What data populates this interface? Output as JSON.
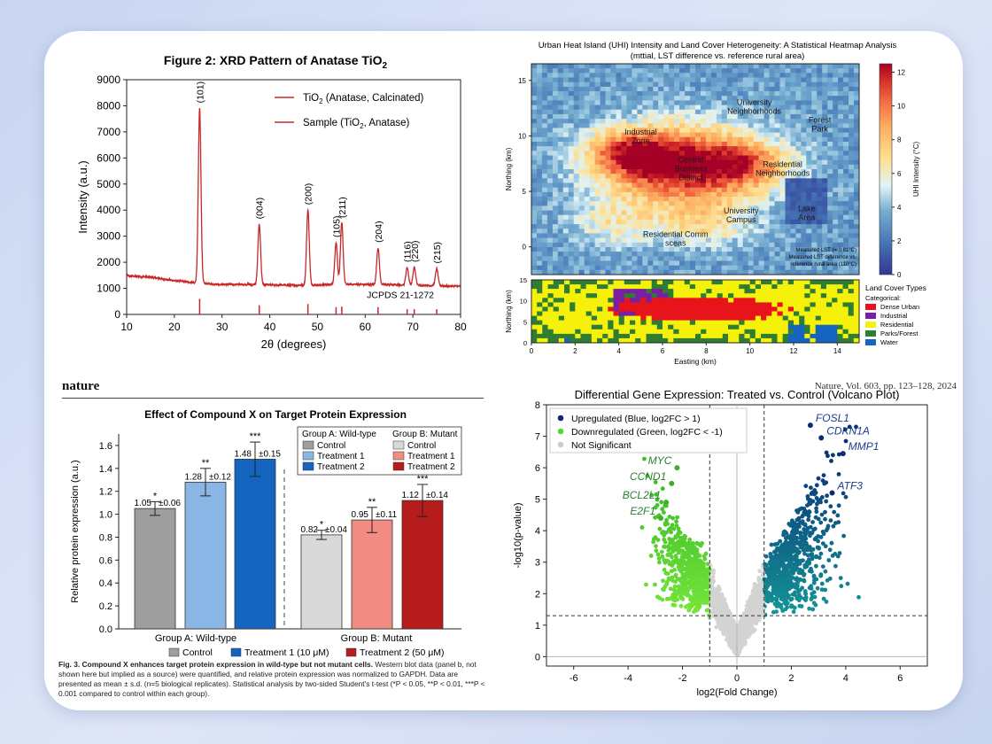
{
  "xrd": {
    "title": "Figure 2: XRD Pattern of Anatase TiO",
    "title_sub": "2",
    "legend1": "TiO",
    "legend1_sub": "2",
    "legend1_rest": " (Anatase, Calcinated)",
    "legend2": "Sample (TiO",
    "legend2_sub": "2",
    "legend2_rest": ", Anatase)",
    "reference": "JCPDS 21-1272",
    "xlabel": "2θ (degrees)",
    "ylabel": "Intensity (a.u.)",
    "line_color": "#c62828"
  },
  "uhi": {
    "title_line1": "Urban Heat Island (UHI) Intensity and Land Cover Heterogeneity: A Statistical Heatmap Analysis",
    "title_line2": "(mttial, LST difference vs. reference rural area)",
    "ylabel": "Northing (km)",
    "xlabel": "Easting (km)",
    "colorbar_label": "UHI Intensity (°C)",
    "areas": [
      "University Neighborhoods",
      "Forest Park",
      "Industrial Zone",
      "Central Business District",
      "Residential Neighborhoods",
      "Lake Area",
      "University Campus",
      "Residential Comm sceas"
    ],
    "note_line1": "Measured LST (= 0.81°C)",
    "note_line2": "Measured LST difference vs.",
    "note_line3": "reference rural area (110°C)",
    "landcover_title": "Land Cover Types",
    "landcover_subtitle": "Categorical:",
    "landcover_items": [
      {
        "label": "Dense Urban",
        "color": "#e8141b"
      },
      {
        "label": "Industrial",
        "color": "#7b1fa2"
      },
      {
        "label": "Residential",
        "color": "#f5f10a"
      },
      {
        "label": "Parks/Forest",
        "color": "#2e7d32"
      },
      {
        "label": "Water",
        "color": "#1565c0"
      }
    ]
  },
  "nature": {
    "journal": "nature",
    "citation": "Nature, Vol. 603, pp. 123–128, 2024",
    "caption_bold": "Fig. 3. Compound X enhances target protein expression in wild-type but not mutant cells.",
    "caption_text": " Western blot data (panel b, not shown here but implied as a source) were quantified, and relative protein expression was normalized to GAPDH. Data are presented as mean ± s.d. (n=5 biological replicates). Statistical analysis by two-sided Student's t-test (*P < 0.05, **P < 0.01, ***P < 0.001 compared to control within each group)."
  },
  "chart_data": [
    {
      "type": "line",
      "title": "Figure 2: XRD Pattern of Anatase TiO2",
      "xlabel": "2θ (degrees)",
      "ylabel": "Intensity (a.u.)",
      "xlim": [
        10,
        80
      ],
      "ylim": [
        0,
        9000
      ],
      "xticks": [
        10,
        20,
        30,
        40,
        50,
        60,
        70,
        80
      ],
      "yticks": [
        0,
        1000,
        2000,
        3000,
        4000,
        5000,
        6000,
        7000,
        8000,
        9000
      ],
      "peaks": [
        {
          "x": 25.3,
          "y": 7900,
          "label": "(101)"
        },
        {
          "x": 37.8,
          "y": 3450,
          "label": "(004)"
        },
        {
          "x": 48.0,
          "y": 4000,
          "label": "(200)"
        },
        {
          "x": 53.9,
          "y": 2750,
          "label": "(105)"
        },
        {
          "x": 55.1,
          "y": 3500,
          "label": "(211)"
        },
        {
          "x": 62.7,
          "y": 2550,
          "label": "(204)"
        },
        {
          "x": 68.8,
          "y": 1800,
          "label": "(116)"
        },
        {
          "x": 70.3,
          "y": 1800,
          "label": "(220)"
        },
        {
          "x": 75.0,
          "y": 1750,
          "label": "(215)"
        }
      ],
      "baseline": [
        [
          10,
          1480
        ],
        [
          15,
          1430
        ],
        [
          20,
          1300
        ],
        [
          25,
          1200
        ],
        [
          30,
          1150
        ],
        [
          35,
          1150
        ],
        [
          40,
          1130
        ],
        [
          45,
          1120
        ],
        [
          50,
          1130
        ],
        [
          55,
          1150
        ],
        [
          60,
          1150
        ],
        [
          65,
          1140
        ],
        [
          70,
          1120
        ],
        [
          75,
          1100
        ],
        [
          80,
          1080
        ]
      ],
      "reference_lines": [
        25.3,
        37.8,
        48.0,
        53.9,
        55.1,
        62.7,
        68.8,
        70.3,
        75.0
      ],
      "reference_heights": [
        600,
        350,
        400,
        280,
        300,
        280,
        200,
        200,
        200
      ]
    },
    {
      "type": "heatmap",
      "title": "Urban Heat Island (UHI) Intensity and Land Cover Heterogeneity",
      "xlabel": "Easting (km)",
      "ylabel": "Northing (km)",
      "xlim": [
        0,
        15
      ],
      "ylim": [
        -2.5,
        16.5
      ],
      "xticks": [
        0,
        2,
        4,
        6,
        8,
        10,
        12,
        14
      ],
      "yticks": [
        0,
        5,
        10,
        15
      ],
      "colorbar": {
        "label": "UHI Intensity (°C)",
        "range": [
          0,
          12.5
        ],
        "ticks": [
          0,
          2,
          4,
          6,
          8,
          10,
          12
        ]
      },
      "hotspots": [
        {
          "x": 7.0,
          "y": 7.2,
          "intensity": 12.0
        },
        {
          "x": 4.5,
          "y": 8.5,
          "intensity": 10.0
        },
        {
          "x": 9.8,
          "y": 7.5,
          "intensity": 7.0
        },
        {
          "x": 8.0,
          "y": 2.0,
          "intensity": 5.5
        },
        {
          "x": 3.8,
          "y": 2.0,
          "intensity": 5.0
        }
      ],
      "landcover_ylim": [
        0,
        15
      ],
      "landcover_yticks": [
        0,
        5,
        10,
        15
      ]
    },
    {
      "type": "bar",
      "title": "Effect of Compound X on Target Protein Expression",
      "ylabel": "Relative protein expression (a.u.)",
      "ylim": [
        0,
        1.7
      ],
      "yticks": [
        0.0,
        0.2,
        0.4,
        0.6,
        0.8,
        1.0,
        1.2,
        1.4,
        1.6
      ],
      "groups": [
        "Group A: Wild-type",
        "Group B: Mutant"
      ],
      "legend_header": [
        "Group A: Wild-type",
        "Group B: Mutant"
      ],
      "legend": {
        "groupA": [
          "Control",
          "Treatment 1",
          "Treatment 2"
        ],
        "groupB": [
          "Control",
          "Treatment 1",
          "Treatment 2"
        ]
      },
      "bottom_legend": [
        "Control",
        "Treatment 1 (10 μM)",
        "Treatment 2 (50 μM)"
      ],
      "bars": [
        {
          "group": "A",
          "name": "Control",
          "value": 1.05,
          "err": 0.06,
          "label": "1.05",
          "err_label": "±0.06",
          "sig": "*",
          "color": "#9e9e9e"
        },
        {
          "group": "A",
          "name": "Treatment 1",
          "value": 1.28,
          "err": 0.12,
          "label": "1.28",
          "err_label": "±0.12",
          "sig": "**",
          "color": "#8ab6e6"
        },
        {
          "group": "A",
          "name": "Treatment 2",
          "value": 1.48,
          "err": 0.15,
          "label": "1.48",
          "err_label": "±0.15",
          "sig": "***",
          "color": "#1565c0"
        },
        {
          "group": "B",
          "name": "Control",
          "value": 0.82,
          "err": 0.04,
          "label": "0.82",
          "err_label": "±0.04",
          "sig": "*",
          "color": "#d9d9d9"
        },
        {
          "group": "B",
          "name": "Treatment 1",
          "value": 0.95,
          "err": 0.11,
          "label": "0.95",
          "err_label": "±0.11",
          "sig": "**",
          "color": "#f28b82"
        },
        {
          "group": "B",
          "name": "Treatment 2",
          "value": 1.12,
          "err": 0.14,
          "label": "1.12",
          "err_label": "±0.14",
          "sig": "***",
          "color": "#b71c1c"
        }
      ]
    },
    {
      "type": "scatter",
      "title": "Differential Gene Expression: Treated vs. Control (Volcano Plot)",
      "xlabel": "log2(Fold Change)",
      "ylabel": "-log10(p-value)",
      "xlim": [
        -7,
        7
      ],
      "ylim": [
        -0.3,
        8
      ],
      "xticks": [
        -6,
        -4,
        -2,
        0,
        2,
        4,
        6
      ],
      "yticks": [
        0,
        1,
        2,
        3,
        4,
        5,
        6,
        7,
        8
      ],
      "thresholds": {
        "fc": [
          -1,
          1
        ],
        "p": 1.3
      },
      "legend": [
        {
          "label": "Upregulated (Blue, log2FC > 1)",
          "color": "#0d2a7a"
        },
        {
          "label": "Downregulated (Green, log2FC < -1)",
          "color": "#55d43a"
        },
        {
          "label": "Not Significant",
          "color": "#cccccc"
        }
      ],
      "labeled_genes": [
        {
          "name": "FOSL1",
          "x": 2.7,
          "y": 7.35,
          "side": "up"
        },
        {
          "name": "CDKN1A",
          "x": 3.1,
          "y": 6.95,
          "side": "up"
        },
        {
          "name": "MMP1",
          "x": 3.9,
          "y": 6.45,
          "side": "up"
        },
        {
          "name": "ATF3",
          "x": 3.5,
          "y": 5.2,
          "side": "up"
        },
        {
          "name": "MYC",
          "x": -2.2,
          "y": 6.0,
          "side": "down"
        },
        {
          "name": "CCND1",
          "x": -2.4,
          "y": 5.5,
          "side": "down"
        },
        {
          "name": "BCL2L1",
          "x": -2.6,
          "y": 4.9,
          "side": "down"
        },
        {
          "name": "E2F1",
          "x": -2.8,
          "y": 4.4,
          "side": "down"
        }
      ]
    }
  ]
}
